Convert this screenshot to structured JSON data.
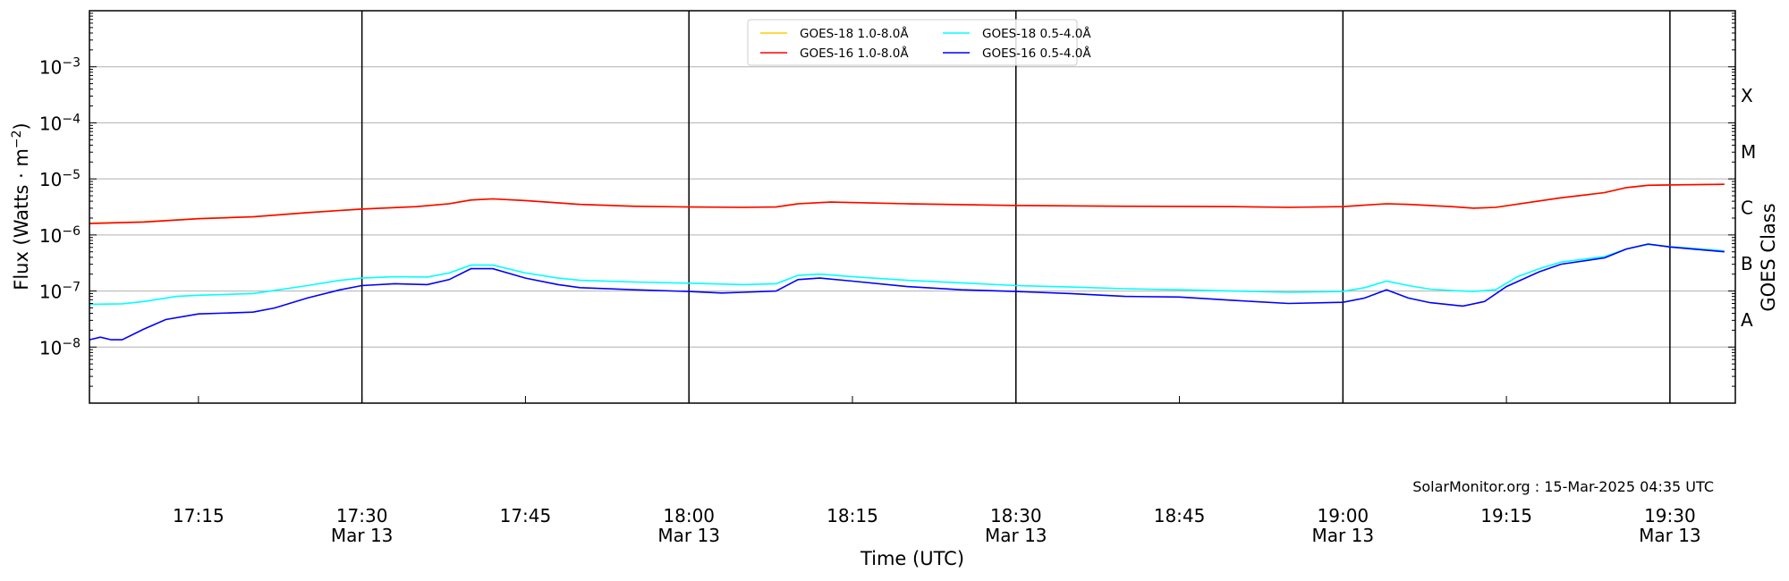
{
  "chart_data": {
    "type": "line",
    "title": "",
    "xlabel": "Time (UTC)",
    "ylabel": "Flux (Watts · m⁻²)",
    "y2label": "GOES Class",
    "yscale": "log",
    "ylim": [
      1e-09,
      0.01
    ],
    "xlim": [
      "17:05",
      "19:36"
    ],
    "date": "Mar 13",
    "grid": "horizontal at decades",
    "legend_placement": "top-center",
    "x_ticks": [
      "17:15",
      "17:30",
      "17:45",
      "18:00",
      "18:15",
      "18:30",
      "18:45",
      "19:00",
      "19:15",
      "19:30"
    ],
    "x_ticks_with_date": [
      "17:30",
      "18:00",
      "18:30",
      "19:00",
      "19:30"
    ],
    "y_ticks": [
      {
        "value": 1e-08,
        "base": "10",
        "exp": "−8"
      },
      {
        "value": 1e-07,
        "base": "10",
        "exp": "−7"
      },
      {
        "value": 1e-06,
        "base": "10",
        "exp": "−6"
      },
      {
        "value": 1e-05,
        "base": "10",
        "exp": "−5"
      },
      {
        "value": 0.0001,
        "base": "10",
        "exp": "−4"
      },
      {
        "value": 0.001,
        "base": "10",
        "exp": "−3"
      }
    ],
    "goes_classes": [
      {
        "label": "A",
        "value": 3.16e-08
      },
      {
        "label": "B",
        "value": 3.16e-07
      },
      {
        "label": "C",
        "value": 3.16e-06
      },
      {
        "label": "M",
        "value": 3.16e-05
      },
      {
        "label": "X",
        "value": 0.000316
      }
    ],
    "vertical_lines": [
      "17:30",
      "18:00",
      "18:30",
      "19:00",
      "19:30"
    ],
    "annotation": "SolarMonitor.org : 15-Mar-2025 04:35 UTC",
    "series": [
      {
        "name": "GOES-18 1.0-8.0Å",
        "color": "#ffcc00",
        "x": [
          "17:05",
          "17:10",
          "17:15",
          "17:20",
          "17:25",
          "17:30",
          "17:35",
          "17:38",
          "17:40",
          "17:42",
          "17:45",
          "17:50",
          "17:55",
          "18:00",
          "18:05",
          "18:08",
          "18:10",
          "18:13",
          "18:20",
          "18:30",
          "18:40",
          "18:50",
          "18:55",
          "19:00",
          "19:02",
          "19:04",
          "19:06",
          "19:10",
          "19:12",
          "19:14",
          "19:20",
          "19:24",
          "19:26",
          "19:28",
          "19:30",
          "19:35"
        ],
        "y": [
          1.62e-06,
          1.72e-06,
          1.97e-06,
          2.12e-06,
          2.52e-06,
          2.92e-06,
          3.22e-06,
          3.62e-06,
          4.22e-06,
          4.42e-06,
          4.12e-06,
          3.52e-06,
          3.27e-06,
          3.17e-06,
          3.12e-06,
          3.17e-06,
          3.62e-06,
          3.87e-06,
          3.62e-06,
          3.37e-06,
          3.27e-06,
          3.22e-06,
          3.12e-06,
          3.22e-06,
          3.42e-06,
          3.62e-06,
          3.52e-06,
          3.22e-06,
          3.02e-06,
          3.12e-06,
          4.62e-06,
          5.72e-06,
          7.02e-06,
          7.72e-06,
          7.82e-06,
          8.02e-06
        ]
      },
      {
        "name": "GOES-16 1.0-8.0Å",
        "color": "#ff0000",
        "x": [
          "17:05",
          "17:10",
          "17:15",
          "17:20",
          "17:25",
          "17:30",
          "17:35",
          "17:38",
          "17:40",
          "17:42",
          "17:45",
          "17:50",
          "17:55",
          "18:00",
          "18:05",
          "18:08",
          "18:10",
          "18:13",
          "18:20",
          "18:30",
          "18:40",
          "18:50",
          "18:55",
          "19:00",
          "19:02",
          "19:04",
          "19:06",
          "19:10",
          "19:12",
          "19:14",
          "19:20",
          "19:24",
          "19:26",
          "19:28",
          "19:30",
          "19:35"
        ],
        "y": [
          1.6e-06,
          1.7e-06,
          1.95e-06,
          2.1e-06,
          2.5e-06,
          2.9e-06,
          3.2e-06,
          3.6e-06,
          4.2e-06,
          4.4e-06,
          4.1e-06,
          3.5e-06,
          3.25e-06,
          3.15e-06,
          3.1e-06,
          3.15e-06,
          3.6e-06,
          3.85e-06,
          3.6e-06,
          3.35e-06,
          3.25e-06,
          3.2e-06,
          3.1e-06,
          3.2e-06,
          3.4e-06,
          3.6e-06,
          3.5e-06,
          3.2e-06,
          3e-06,
          3.1e-06,
          4.6e-06,
          5.7e-06,
          7e-06,
          7.7e-06,
          7.8e-06,
          8e-06
        ]
      },
      {
        "name": "GOES-18 0.5-4.0Å",
        "color": "#00ffff",
        "x": [
          "17:05",
          "17:08",
          "17:10",
          "17:13",
          "17:15",
          "17:20",
          "17:25",
          "17:28",
          "17:30",
          "17:33",
          "17:36",
          "17:38",
          "17:40",
          "17:42",
          "17:45",
          "17:48",
          "17:50",
          "17:55",
          "18:00",
          "18:05",
          "18:08",
          "18:10",
          "18:12",
          "18:15",
          "18:20",
          "18:25",
          "18:30",
          "18:35",
          "18:40",
          "18:45",
          "18:50",
          "18:55",
          "19:00",
          "19:02",
          "19:04",
          "19:06",
          "19:08",
          "19:10",
          "19:12",
          "19:14",
          "19:16",
          "19:18",
          "19:20",
          "19:24",
          "19:26",
          "19:28",
          "19:30",
          "19:35"
        ],
        "y": [
          5.8e-08,
          5.9e-08,
          6.5e-08,
          8e-08,
          8.4e-08,
          9e-08,
          1.25e-07,
          1.55e-07,
          1.7e-07,
          1.8e-07,
          1.78e-07,
          2.1e-07,
          2.9e-07,
          2.9e-07,
          2.1e-07,
          1.7e-07,
          1.55e-07,
          1.45e-07,
          1.38e-07,
          1.3e-07,
          1.35e-07,
          1.9e-07,
          2e-07,
          1.8e-07,
          1.55e-07,
          1.4e-07,
          1.25e-07,
          1.18e-07,
          1.1e-07,
          1.05e-07,
          1e-07,
          9.5e-08,
          9.8e-08,
          1.15e-07,
          1.5e-07,
          1.25e-07,
          1.08e-07,
          1.02e-07,
          9.8e-08,
          1.05e-07,
          1.8e-07,
          2.5e-07,
          3.3e-07,
          4.1e-07,
          5.6e-07,
          6.8e-07,
          6.2e-07,
          5.2e-07
        ]
      },
      {
        "name": "GOES-16 0.5-4.0Å",
        "color": "#0000ff",
        "x": [
          "17:05",
          "17:06",
          "17:07",
          "17:08",
          "17:10",
          "17:12",
          "17:15",
          "17:20",
          "17:22",
          "17:25",
          "17:28",
          "17:30",
          "17:33",
          "17:36",
          "17:38",
          "17:40",
          "17:42",
          "17:45",
          "17:48",
          "17:50",
          "17:55",
          "18:00",
          "18:03",
          "18:05",
          "18:08",
          "18:10",
          "18:12",
          "18:15",
          "18:20",
          "18:25",
          "18:30",
          "18:35",
          "18:40",
          "18:45",
          "18:50",
          "18:55",
          "19:00",
          "19:02",
          "19:04",
          "19:06",
          "19:08",
          "19:11",
          "19:13",
          "19:15",
          "19:18",
          "19:20",
          "19:24",
          "19:26",
          "19:28",
          "19:30",
          "19:35"
        ],
        "y": [
          1.35e-08,
          1.5e-08,
          1.35e-08,
          1.35e-08,
          2.1e-08,
          3.1e-08,
          3.9e-08,
          4.2e-08,
          5e-08,
          7.5e-08,
          1.05e-07,
          1.25e-07,
          1.35e-07,
          1.3e-07,
          1.6e-07,
          2.5e-07,
          2.5e-07,
          1.7e-07,
          1.3e-07,
          1.15e-07,
          1.05e-07,
          9.8e-08,
          9.2e-08,
          9.5e-08,
          1e-07,
          1.6e-07,
          1.7e-07,
          1.5e-07,
          1.2e-07,
          1.05e-07,
          9.8e-08,
          9e-08,
          8e-08,
          7.8e-08,
          6.8e-08,
          6e-08,
          6.3e-08,
          7.5e-08,
          1.05e-07,
          7.5e-08,
          6.2e-08,
          5.4e-08,
          6.5e-08,
          1.2e-07,
          2.2e-07,
          3e-07,
          3.9e-07,
          5.6e-07,
          6.9e-07,
          6.1e-07,
          5e-07
        ]
      }
    ]
  }
}
